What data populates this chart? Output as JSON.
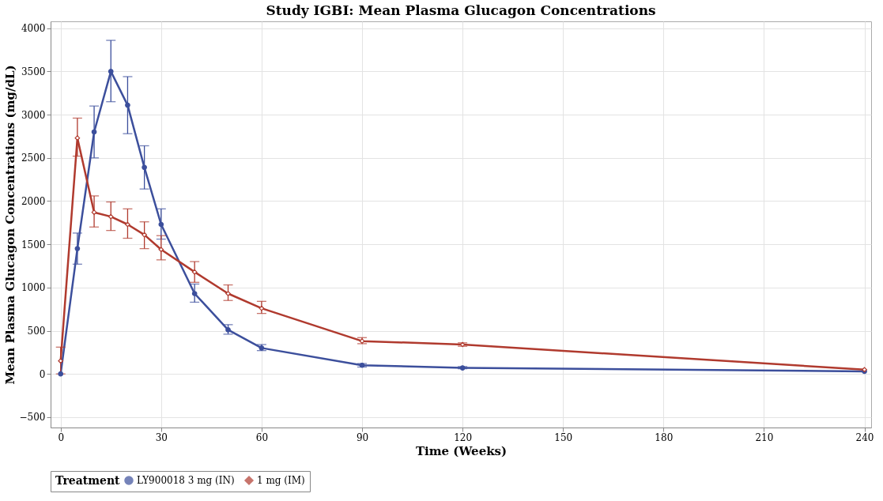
{
  "chart_data": {
    "type": "line",
    "title": "Study IGBI: Mean Plasma Glucagon Concentrations",
    "xlabel": "Time (Weeks)",
    "ylabel": "Mean Plasma Glucagon Concentrations (mg/dL)",
    "legend_title": "Treatment",
    "legend": "bottom",
    "grid": true,
    "line_style": "solid",
    "x": [
      0,
      5,
      10,
      15,
      20,
      25,
      30,
      40,
      50,
      60,
      90,
      120,
      240
    ],
    "xlim": [
      -3,
      242
    ],
    "xticks": [
      0,
      30,
      60,
      90,
      120,
      150,
      180,
      210,
      240
    ],
    "ylim": [
      -620,
      4080
    ],
    "yticks": [
      -500,
      0,
      500,
      1000,
      1500,
      2000,
      2500,
      3000,
      3500,
      4000
    ],
    "series": [
      {
        "name": "LY900018 3 mg (IN)",
        "color": "#3c4f9c",
        "marker": "circle",
        "values": [
          0,
          1450,
          2800,
          3500,
          3110,
          2390,
          1730,
          930,
          510,
          300,
          100,
          70,
          30
        ],
        "errors": [
          null,
          [
            1270,
            1630
          ],
          [
            2500,
            3100
          ],
          [
            3150,
            3860
          ],
          [
            2780,
            3440
          ],
          [
            2140,
            2640
          ],
          [
            1560,
            1910
          ],
          [
            830,
            1040
          ],
          [
            460,
            570
          ],
          [
            270,
            340
          ],
          [
            80,
            120
          ],
          [
            60,
            85
          ],
          null
        ]
      },
      {
        "name": "1 mg (IM)",
        "color": "#b03a2e",
        "marker": "diamond",
        "values": [
          150,
          2730,
          1870,
          1820,
          1730,
          1610,
          1440,
          1180,
          930,
          760,
          380,
          340,
          50
        ],
        "errors": [
          [
            0,
            310
          ],
          [
            2520,
            2960
          ],
          [
            1700,
            2060
          ],
          [
            1660,
            1990
          ],
          [
            1570,
            1910
          ],
          [
            1450,
            1760
          ],
          [
            1320,
            1600
          ],
          [
            1060,
            1300
          ],
          [
            850,
            1030
          ],
          [
            700,
            840
          ],
          [
            350,
            420
          ],
          [
            320,
            360
          ],
          null
        ]
      }
    ]
  }
}
